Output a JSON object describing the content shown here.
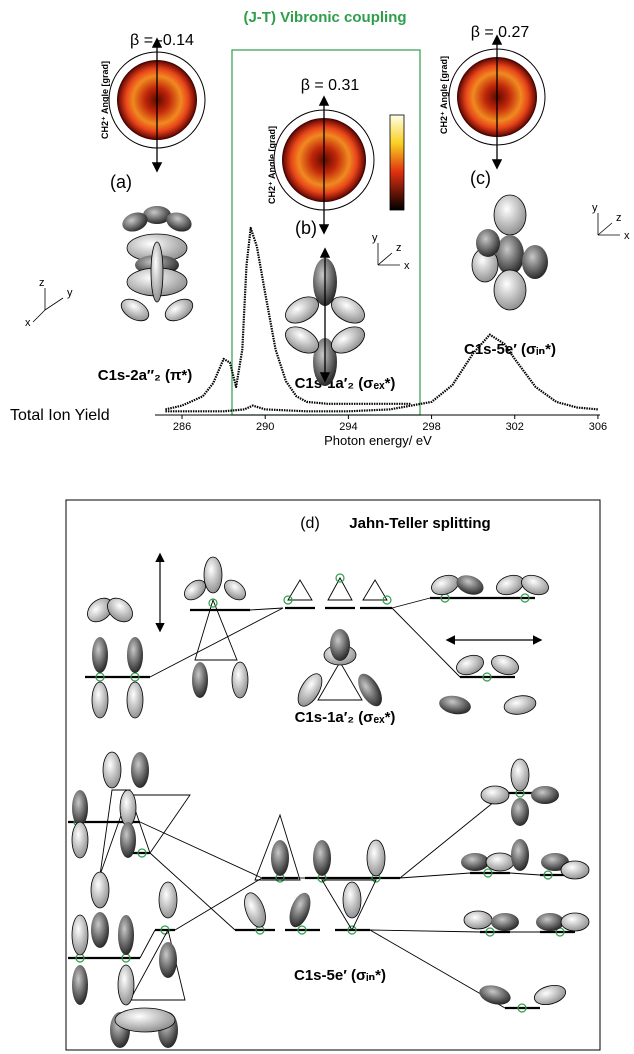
{
  "header": {
    "title": "(J-T) Vibronic coupling"
  },
  "detectors": [
    {
      "label": "(a)",
      "beta": "β = -0.14",
      "axis_label": "CH2⁺ Angle [grad]"
    },
    {
      "label": "(b)",
      "beta": "β = 0.31",
      "axis_label": "CH2⁺ Angle [grad]"
    },
    {
      "label": "(c)",
      "beta": "β = 0.27",
      "axis_label": "CH2⁺ Angle [grad]"
    }
  ],
  "transitions": [
    "C1s-2a″₂ (π*)",
    "C1s-1a′₂ (σₑₓ*)",
    "C1s-5e′ (σᵢₙ*)"
  ],
  "frames": [
    [
      "z",
      "y",
      "x"
    ],
    [
      "y",
      "z",
      "x"
    ],
    [
      "y",
      "z",
      "x"
    ]
  ],
  "chart_data": {
    "type": "line",
    "ylabel": "Total Ion Yield",
    "xlabel": "Photon energy/ eV",
    "xlim": [
      284.7,
      306.1
    ],
    "xticks": [
      286,
      290,
      294,
      298,
      302,
      306
    ],
    "ylim": [
      0,
      1
    ],
    "series": [
      {
        "color": "#000000",
        "x": [
          285.2,
          286,
          287,
          287.5,
          288,
          288.3,
          288.6,
          288.9,
          289.1,
          289.3,
          289.6,
          290,
          290.5,
          291,
          291.5,
          292,
          293,
          294,
          295,
          296,
          297
        ],
        "values": [
          0.03,
          0.05,
          0.1,
          0.17,
          0.3,
          0.28,
          0.15,
          0.35,
          0.8,
          1.0,
          0.9,
          0.65,
          0.35,
          0.18,
          0.1,
          0.07,
          0.06,
          0.06,
          0.06,
          0.06,
          0.06
        ]
      },
      {
        "color": "#000000",
        "x": [
          285.2,
          288,
          289,
          289.4,
          290,
          292,
          294,
          296,
          298,
          299,
          300,
          300.8,
          301.5,
          302,
          303,
          304,
          305,
          306
        ],
        "values": [
          0.02,
          0.02,
          0.03,
          0.05,
          0.03,
          0.02,
          0.02,
          0.03,
          0.07,
          0.16,
          0.33,
          0.43,
          0.38,
          0.3,
          0.15,
          0.07,
          0.04,
          0.03
        ]
      }
    ]
  },
  "diagram": {
    "label": "(d)",
    "title": "Jahn-Teller splitting",
    "levels": [
      "C1s-1a′₂ (σₑₓ*)",
      "C1s-5e′ (σᵢₙ*)"
    ]
  }
}
